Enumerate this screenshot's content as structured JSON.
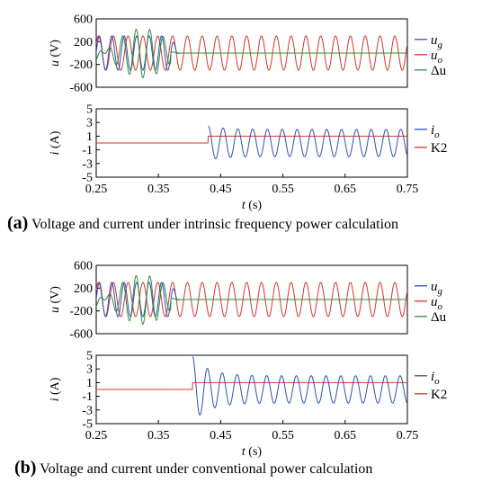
{
  "chart_data": [
    {
      "type": "line",
      "panel": "a-voltage",
      "ylabel_var": "u",
      "ylabel_unit": " (V)",
      "xlim": [
        0.25,
        0.75
      ],
      "ylim": [
        -600,
        600
      ],
      "yticks": [
        "600",
        "200",
        "-200",
        "-600"
      ],
      "ytick_values": [
        600,
        200,
        -200,
        -600
      ],
      "series": [
        {
          "name": "u",
          "sub": "g",
          "color": "#2f4fb5",
          "values": {
            "amplitude_before": 300,
            "frequency_hz": 50,
            "drift_to_zero_by_s": 0.37
          }
        },
        {
          "name": "u",
          "sub": "o",
          "color": "#d9342b",
          "values": {
            "amplitude": 300,
            "frequency_hz": 42
          }
        },
        {
          "name": "Δu",
          "sub": "",
          "color": "#2e8b3a",
          "values": {
            "amplitude_peak": 420,
            "settles_by_s": 0.37
          }
        }
      ]
    },
    {
      "type": "line",
      "panel": "a-current",
      "ylabel_var": "i",
      "ylabel_unit": " (A)",
      "xlim": [
        0.25,
        0.75
      ],
      "ylim": [
        -5,
        5
      ],
      "yticks": [
        "5",
        "3",
        "1",
        "-1",
        "-3",
        "-5"
      ],
      "ytick_values": [
        5,
        3,
        1,
        -1,
        -3,
        -5
      ],
      "xticks": [
        "0.25",
        "0.35",
        "0.45",
        "0.55",
        "0.65",
        "0.75"
      ],
      "xtick_values": [
        0.25,
        0.35,
        0.45,
        0.55,
        0.65,
        0.75
      ],
      "xlabel_var": "t",
      "xlabel_unit": " (s)",
      "series": [
        {
          "name": "i",
          "sub": "o",
          "color": "#2f4fb5",
          "values": {
            "amplitude": 2,
            "frequency_hz": 42,
            "starts_at_s": 0.43,
            "initial_peak": 2.5
          }
        },
        {
          "name": "K2",
          "sub": "",
          "color": "#d9342b",
          "values": {
            "before": 0,
            "after": 1,
            "switch_s": 0.43
          }
        }
      ]
    },
    {
      "type": "line",
      "panel": "b-voltage",
      "ylabel_var": "u",
      "ylabel_unit": " (V)",
      "xlim": [
        0.25,
        0.75
      ],
      "ylim": [
        -600,
        600
      ],
      "yticks": [
        "600",
        "200",
        "-200",
        "-600"
      ],
      "ytick_values": [
        600,
        200,
        -200,
        -600
      ],
      "series": [
        {
          "name": "u",
          "sub": "g",
          "color": "#2f4fb5",
          "values": {
            "amplitude_before": 300,
            "frequency_hz": 50,
            "drift_to_zero_by_s": 0.37
          }
        },
        {
          "name": "u",
          "sub": "o",
          "color": "#d9342b",
          "values": {
            "amplitude": 300,
            "frequency_hz": 42
          }
        },
        {
          "name": "Δu",
          "sub": "",
          "color": "#2e8b3a",
          "values": {
            "amplitude_peak": 420,
            "settles_by_s": 0.37
          }
        }
      ]
    },
    {
      "type": "line",
      "panel": "b-current",
      "ylabel_var": "i",
      "ylabel_unit": " (A)",
      "xlim": [
        0.25,
        0.75
      ],
      "ylim": [
        -5,
        5
      ],
      "yticks": [
        "5",
        "3",
        "1",
        "-1",
        "-3",
        "-5"
      ],
      "ytick_values": [
        5,
        3,
        1,
        -1,
        -3,
        -5
      ],
      "xticks": [
        "0.25",
        "0.35",
        "0.45",
        "0.55",
        "0.65",
        "0.75"
      ],
      "xtick_values": [
        0.25,
        0.35,
        0.45,
        0.55,
        0.65,
        0.75
      ],
      "xlabel_var": "t",
      "xlabel_unit": " (s)",
      "series": [
        {
          "name": "i",
          "sub": "o",
          "color": "#2f4fb5",
          "values": {
            "amplitude_peak": 4.8,
            "amplitude_steady": 2,
            "frequency_hz": 42,
            "starts_at_s": 0.405
          }
        },
        {
          "name": "K2",
          "sub": "",
          "color": "#d9342b",
          "values": {
            "before": 0,
            "after": 1,
            "switch_s": 0.405
          }
        }
      ]
    }
  ],
  "captions": [
    {
      "label": "(a)",
      "text": " Voltage and current under intrinsic frequency power calculation"
    },
    {
      "label": "(b)",
      "text": " Voltage and current under conventional power calculation"
    }
  ]
}
